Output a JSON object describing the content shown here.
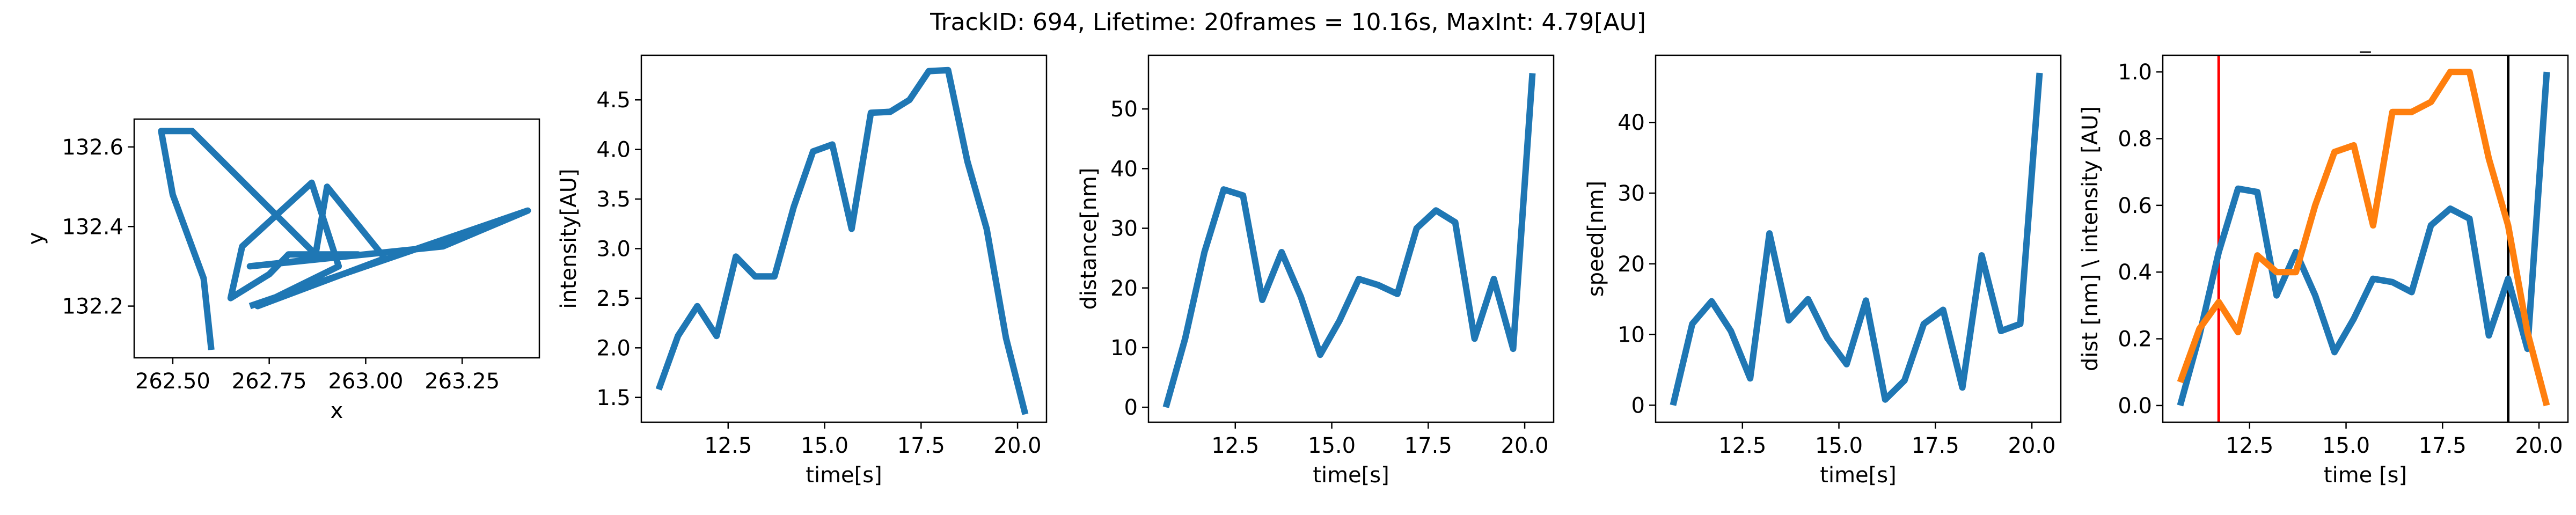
{
  "figure": {
    "title": "TrackID: 694, Lifetime: 20frames = 10.16s, MaxInt: 4.79[AU]"
  },
  "colors": {
    "blue": "#1f77b4",
    "orange": "#ff7f0e",
    "red": "#ff0000",
    "black": "#000000"
  },
  "chart_data": [
    {
      "type": "line",
      "title": "",
      "xlabel": "x",
      "ylabel": "y",
      "xlim": [
        262.4,
        263.45
      ],
      "ylim": [
        132.07,
        132.67
      ],
      "xticks": [
        262.5,
        262.75,
        263.0,
        263.25
      ],
      "xtick_labels": [
        "262.50",
        "262.75",
        "263.00",
        "263.25"
      ],
      "yticks": [
        132.2,
        132.4,
        132.6
      ],
      "ytick_labels": [
        "132.2",
        "132.4",
        "132.6"
      ],
      "grid": false,
      "series": [
        {
          "color": "#1f77b4",
          "x": [
            262.6,
            262.58,
            262.5,
            262.47,
            262.55,
            262.87,
            262.9,
            263.05,
            262.72,
            262.93,
            262.86,
            262.68,
            262.65,
            262.75,
            262.8,
            262.98,
            262.7,
            263.2,
            263.42,
            262.7
          ],
          "y": [
            132.09,
            132.27,
            132.48,
            132.64,
            132.64,
            132.33,
            132.5,
            132.32,
            132.2,
            132.3,
            132.51,
            132.35,
            132.22,
            132.28,
            132.33,
            132.33,
            132.3,
            132.35,
            132.44,
            132.2
          ]
        }
      ]
    },
    {
      "type": "line",
      "title": "",
      "xlabel": "time[s]",
      "ylabel": "intensity[AU]",
      "xlim": [
        10.25,
        20.75
      ],
      "ylim": [
        1.25,
        4.95
      ],
      "xticks": [
        12.5,
        15.0,
        17.5,
        20.0
      ],
      "xtick_labels": [
        "12.5",
        "15.0",
        "17.5",
        "20.0"
      ],
      "yticks": [
        1.5,
        2.0,
        2.5,
        3.0,
        3.5,
        4.0,
        4.5
      ],
      "ytick_labels": [
        "1.5",
        "2.0",
        "2.5",
        "3.0",
        "3.5",
        "4.0",
        "4.5"
      ],
      "grid": false,
      "series": [
        {
          "color": "#1f77b4",
          "x": [
            10.7,
            11.2,
            11.7,
            12.2,
            12.7,
            13.2,
            13.7,
            14.2,
            14.7,
            15.2,
            15.7,
            16.2,
            16.7,
            17.2,
            17.7,
            18.2,
            18.7,
            19.2,
            19.7,
            20.2
          ],
          "y": [
            1.58,
            2.12,
            2.42,
            2.12,
            2.92,
            2.72,
            2.72,
            3.42,
            3.98,
            4.05,
            3.2,
            4.37,
            4.38,
            4.5,
            4.79,
            4.8,
            3.88,
            3.2,
            2.1,
            1.33
          ]
        }
      ]
    },
    {
      "type": "line",
      "title": "",
      "xlabel": "time[s]",
      "ylabel": "distance[nm]",
      "xlim": [
        10.25,
        20.75
      ],
      "ylim": [
        -2.5,
        59
      ],
      "xticks": [
        12.5,
        15.0,
        17.5,
        20.0
      ],
      "xtick_labels": [
        "12.5",
        "15.0",
        "17.5",
        "20.0"
      ],
      "yticks": [
        0,
        10,
        20,
        30,
        40,
        50
      ],
      "ytick_labels": [
        "0",
        "10",
        "20",
        "30",
        "40",
        "50"
      ],
      "grid": false,
      "series": [
        {
          "color": "#1f77b4",
          "x": [
            10.7,
            11.2,
            11.7,
            12.2,
            12.7,
            13.2,
            13.7,
            14.2,
            14.7,
            15.2,
            15.7,
            16.2,
            16.7,
            17.2,
            17.7,
            18.2,
            18.7,
            19.2,
            19.7,
            20.2
          ],
          "y": [
            0.0,
            11.5,
            26.0,
            36.5,
            35.5,
            18.0,
            26.0,
            18.5,
            8.8,
            14.5,
            21.5,
            20.5,
            19.0,
            30.0,
            33.0,
            31.0,
            11.5,
            21.5,
            9.8,
            56.0
          ]
        }
      ]
    },
    {
      "type": "line",
      "title": "",
      "xlabel": "time[s]",
      "ylabel": "speed[nm]",
      "xlim": [
        10.25,
        20.75
      ],
      "ylim": [
        -2.4,
        49.5
      ],
      "xticks": [
        12.5,
        15.0,
        17.5,
        20.0
      ],
      "xtick_labels": [
        "12.5",
        "15.0",
        "17.5",
        "20.0"
      ],
      "yticks": [
        0,
        10,
        20,
        30,
        40
      ],
      "ytick_labels": [
        "0",
        "10",
        "20",
        "30",
        "40"
      ],
      "grid": false,
      "series": [
        {
          "color": "#1f77b4",
          "x": [
            10.7,
            11.2,
            11.7,
            12.2,
            12.7,
            13.2,
            13.7,
            14.2,
            14.7,
            15.2,
            15.7,
            16.2,
            16.7,
            17.2,
            17.7,
            18.2,
            18.7,
            19.2,
            19.7,
            20.2
          ],
          "y": [
            0.0,
            11.5,
            14.7,
            10.5,
            3.8,
            24.3,
            12.0,
            15.0,
            9.5,
            5.8,
            14.8,
            0.8,
            3.5,
            11.5,
            13.5,
            2.5,
            21.2,
            10.5,
            11.5,
            47.0
          ]
        }
      ]
    },
    {
      "type": "line",
      "title": "_",
      "xlabel": "time [s]",
      "ylabel": "dist [nm] \\ intensity [AU]",
      "xlim": [
        10.25,
        20.75
      ],
      "ylim": [
        -0.05,
        1.05
      ],
      "xticks": [
        12.5,
        15.0,
        17.5,
        20.0
      ],
      "xtick_labels": [
        "12.5",
        "15.0",
        "17.5",
        "20.0"
      ],
      "yticks": [
        0.0,
        0.2,
        0.4,
        0.6,
        0.8,
        1.0
      ],
      "ytick_labels": [
        "0.0",
        "0.2",
        "0.4",
        "0.6",
        "0.8",
        "1.0"
      ],
      "grid": false,
      "vlines": [
        {
          "x": 11.7,
          "color": "#ff0000"
        },
        {
          "x": 19.2,
          "color": "#000000"
        }
      ],
      "series": [
        {
          "color": "#1f77b4",
          "x": [
            10.7,
            11.2,
            11.7,
            12.2,
            12.7,
            13.2,
            13.7,
            14.2,
            14.7,
            15.2,
            15.7,
            16.2,
            16.7,
            17.2,
            17.7,
            18.2,
            18.7,
            19.2,
            19.7,
            20.2
          ],
          "y": [
            0.0,
            0.21,
            0.46,
            0.65,
            0.64,
            0.33,
            0.46,
            0.33,
            0.16,
            0.26,
            0.38,
            0.37,
            0.34,
            0.54,
            0.59,
            0.56,
            0.21,
            0.38,
            0.17,
            1.0
          ]
        },
        {
          "color": "#ff7f0e",
          "x": [
            10.7,
            11.2,
            11.7,
            12.2,
            12.7,
            13.2,
            13.7,
            14.2,
            14.7,
            15.2,
            15.7,
            16.2,
            16.7,
            17.2,
            17.7,
            18.2,
            18.7,
            19.2,
            19.7,
            20.2
          ],
          "y": [
            0.07,
            0.23,
            0.31,
            0.22,
            0.45,
            0.4,
            0.4,
            0.6,
            0.76,
            0.78,
            0.54,
            0.88,
            0.88,
            0.91,
            1.0,
            1.0,
            0.74,
            0.54,
            0.22,
            0.0
          ]
        }
      ]
    }
  ]
}
